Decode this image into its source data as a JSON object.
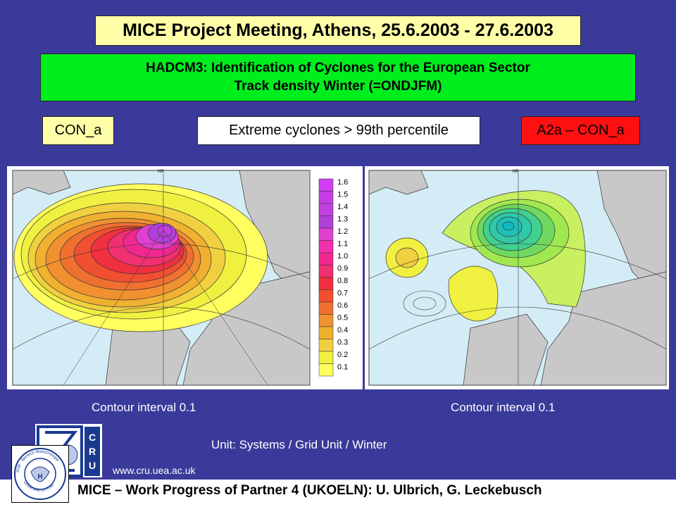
{
  "header": {
    "title": "MICE Project Meeting, Athens, 25.6.2003 - 27.6.2003"
  },
  "subtitle": {
    "line1": "HADCM3: Identification of Cyclones for the European Sector",
    "line2": "Track density Winter (=ONDJFM)"
  },
  "labels": {
    "left": "CON_a",
    "middle": "Extreme cyclones > 99th percentile",
    "right": "A2a – CON_a"
  },
  "maps": {
    "left": {
      "np_label": "NP",
      "legend": [
        "1.6",
        "1.5",
        "1.4",
        "1.3",
        "1.2",
        "1.1",
        "1.0",
        "0.9",
        "0.8",
        "0.7",
        "0.6",
        "0.5",
        "0.4",
        "0.3",
        "0.2",
        "0.1"
      ],
      "legend_colors": [
        "#d040f0",
        "#c83ce8",
        "#c040e0",
        "#b040d8",
        "#e040d0",
        "#f030b0",
        "#f02890",
        "#f03070",
        "#f03040",
        "#f05030",
        "#f07030",
        "#f09030",
        "#f0b030",
        "#f0d040",
        "#f0f040",
        "#ffff60"
      ]
    },
    "right": {
      "np_label": "NP"
    }
  },
  "captions": {
    "left": "Contour interval 0.1",
    "right": "Contour interval 0.1"
  },
  "unit": "Unit: Systems / Grid Unit / Winter",
  "url": "www.cru.uea.ac.uk",
  "footer": "MICE – Work Progress of Partner 4 (UKOELN): U. Ulbrich, G. Leckebusch",
  "logos": {
    "cru_text": "CRU",
    "igm_text": "IGM · Bereich Meteorologie · Universität zu Köln"
  },
  "colors": {
    "background": "#3a3a9a",
    "title_bg": "#ffffa8",
    "subtitle_bg": "#00ee1e",
    "right_label_bg": "#ff1010",
    "ocean": "#d4ecf6",
    "land": "#c8c8c8"
  }
}
